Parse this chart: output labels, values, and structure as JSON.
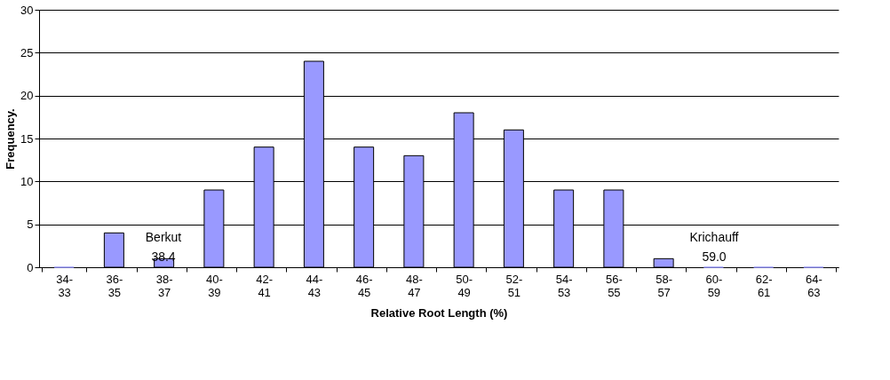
{
  "chart_data": {
    "type": "bar",
    "xlabel": "Relative Root Length (%)",
    "ylabel": "Frequency.",
    "categories": [
      "34-\n33",
      "36-\n35",
      "38-\n37",
      "40-\n39",
      "42-\n41",
      "44-\n43",
      "46-\n45",
      "48-\n47",
      "50-\n49",
      "52-\n51",
      "54-\n53",
      "56-\n55",
      "58-\n57",
      "60-\n59",
      "62-\n61",
      "64-\n63"
    ],
    "values": [
      0,
      4,
      1,
      9,
      14,
      24,
      14,
      13,
      18,
      16,
      9,
      9,
      1,
      0,
      0,
      0
    ],
    "color": "#9999ff",
    "ylim": [
      0,
      30
    ],
    "yticks": [
      0,
      5,
      10,
      15,
      20,
      25,
      30
    ],
    "grid": "y",
    "annotations": [
      "Berkut\n38.4",
      "Krichauff\n59.0"
    ]
  }
}
